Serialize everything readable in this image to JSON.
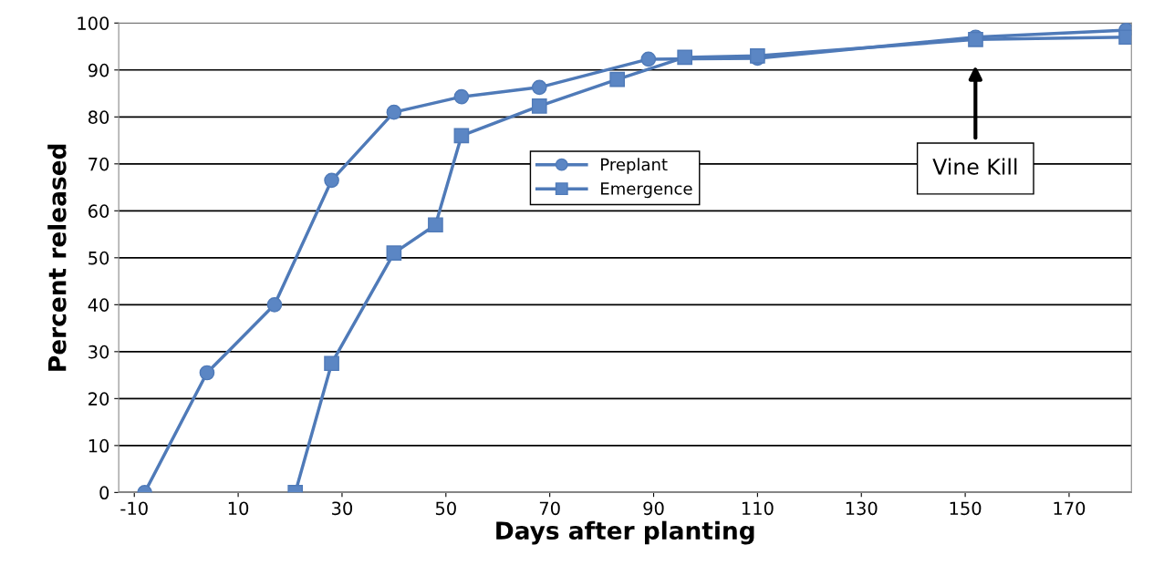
{
  "chart_data": {
    "type": "line",
    "xlabel": "Days after planting",
    "ylabel": "Percent released",
    "xlim": [
      -13,
      182
    ],
    "xticks": [
      -10,
      10,
      30,
      50,
      70,
      90,
      110,
      130,
      150,
      170
    ],
    "ylim": [
      0,
      100
    ],
    "yticks": [
      0,
      10,
      20,
      30,
      40,
      50,
      60,
      70,
      80,
      90,
      100
    ],
    "grid": "y",
    "legend": "center",
    "line_style": "solid",
    "series": [
      {
        "name": "Preplant",
        "color": "#4f7ab8",
        "marker": "circle",
        "x": [
          -8,
          4,
          17,
          28,
          40,
          53,
          68,
          89,
          110,
          152,
          181
        ],
        "values": [
          0,
          25.5,
          40,
          66.5,
          81,
          84.3,
          86.3,
          92.3,
          92.5,
          97,
          98.5
        ]
      },
      {
        "name": "Emergence",
        "color": "#4f7ab8",
        "marker": "square",
        "x": [
          21,
          28,
          40,
          48,
          53,
          68,
          83,
          96,
          110,
          152,
          181
        ],
        "values": [
          0,
          27.5,
          51,
          57,
          76,
          82.3,
          88,
          92.7,
          93,
          96.5,
          97
        ]
      }
    ],
    "annotations": [
      "Vine Kill"
    ]
  }
}
